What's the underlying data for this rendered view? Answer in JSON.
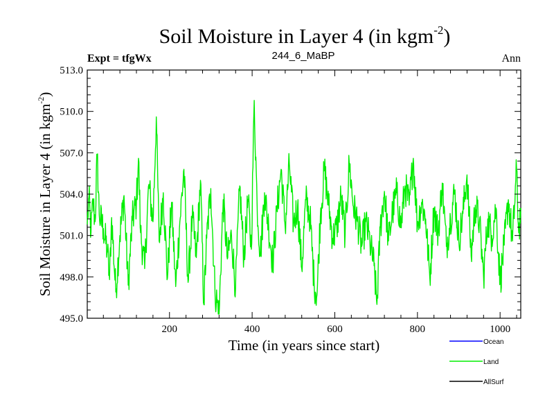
{
  "chart_data": {
    "type": "line",
    "title": "Soil Moisture in Layer 4 (in kgm",
    "title_sup": "-2",
    "title_close": ")",
    "subtitle_left": "Expt = tfgWx",
    "subtitle_center": "244_6_MaBP",
    "subtitle_right": "Ann",
    "xlabel": "Time (in years since start)",
    "ylabel": "Soil Moisture in Layer 4 (in kgm",
    "ylabel_sup": "-2",
    "ylabel_close": ")",
    "xlim": [
      1,
      1050
    ],
    "ylim": [
      495.0,
      513.0
    ],
    "xticks": [
      200,
      400,
      600,
      800,
      1000
    ],
    "xtick_labels": [
      "200",
      "400",
      "600",
      "800",
      "1000"
    ],
    "yticks": [
      495.0,
      498.0,
      501.0,
      504.0,
      507.0,
      510.0,
      513.0
    ],
    "ytick_labels": [
      "495.0",
      "498.0",
      "501.0",
      "504.0",
      "507.0",
      "510.0",
      "513.0"
    ],
    "legend": [
      {
        "name": "Ocean",
        "color": "#0000ff"
      },
      {
        "name": "Land",
        "color": "#00ee00"
      },
      {
        "name": "AllSurf",
        "color": "#000000"
      }
    ],
    "series": [
      {
        "name": "Land",
        "color": "#00ee00",
        "keypoints": [
          [
            1,
            501.8
          ],
          [
            5,
            503.8
          ],
          [
            10,
            501.2
          ],
          [
            15,
            503.5
          ],
          [
            20,
            502.0
          ],
          [
            25,
            506.9
          ],
          [
            30,
            502.5
          ],
          [
            40,
            501.5
          ],
          [
            50,
            499.8
          ],
          [
            55,
            497.8
          ],
          [
            60,
            502.3
          ],
          [
            70,
            496.9
          ],
          [
            80,
            501.0
          ],
          [
            90,
            503.9
          ],
          [
            100,
            497.4
          ],
          [
            110,
            502.1
          ],
          [
            120,
            503.4
          ],
          [
            125,
            506.6
          ],
          [
            130,
            501.2
          ],
          [
            140,
            498.6
          ],
          [
            150,
            504.7
          ],
          [
            160,
            502.0
          ],
          [
            168,
            509.6
          ],
          [
            175,
            500.6
          ],
          [
            185,
            504.1
          ],
          [
            195,
            497.9
          ],
          [
            205,
            503.4
          ],
          [
            215,
            497.3
          ],
          [
            225,
            502.0
          ],
          [
            235,
            505.8
          ],
          [
            245,
            497.6
          ],
          [
            255,
            502.3
          ],
          [
            265,
            499.4
          ],
          [
            275,
            505.0
          ],
          [
            283,
            496.0
          ],
          [
            290,
            500.8
          ],
          [
            300,
            504.4
          ],
          [
            310,
            497.0
          ],
          [
            320,
            495.3
          ],
          [
            330,
            503.6
          ],
          [
            340,
            499.3
          ],
          [
            350,
            501.0
          ],
          [
            360,
            497.2
          ],
          [
            370,
            504.6
          ],
          [
            380,
            499.4
          ],
          [
            390,
            503.6
          ],
          [
            398,
            500.0
          ],
          [
            405,
            510.8
          ],
          [
            412,
            503.2
          ],
          [
            420,
            499.6
          ],
          [
            430,
            504.1
          ],
          [
            440,
            501.6
          ],
          [
            450,
            499.0
          ],
          [
            460,
            502.8
          ],
          [
            470,
            505.8
          ],
          [
            480,
            501.6
          ],
          [
            490,
            506.2
          ],
          [
            500,
            501.8
          ],
          [
            510,
            503.2
          ],
          [
            520,
            498.6
          ],
          [
            530,
            503.6
          ],
          [
            540,
            502.4
          ],
          [
            550,
            497.6
          ],
          [
            557,
            496.7
          ],
          [
            565,
            502.4
          ],
          [
            575,
            505.8
          ],
          [
            585,
            503.2
          ],
          [
            595,
            500.8
          ],
          [
            605,
            501.6
          ],
          [
            615,
            503.8
          ],
          [
            625,
            501.1
          ],
          [
            635,
            506.3
          ],
          [
            645,
            503.1
          ],
          [
            655,
            502.0
          ],
          [
            665,
            500.2
          ],
          [
            675,
            502.0
          ],
          [
            685,
            500.5
          ],
          [
            695,
            498.8
          ],
          [
            702,
            496.0
          ],
          [
            710,
            501.6
          ],
          [
            720,
            504.2
          ],
          [
            730,
            500.6
          ],
          [
            740,
            502.8
          ],
          [
            750,
            504.1
          ],
          [
            760,
            501.6
          ],
          [
            770,
            504.6
          ],
          [
            780,
            503.2
          ],
          [
            790,
            506.6
          ],
          [
            800,
            501.8
          ],
          [
            810,
            503.4
          ],
          [
            820,
            502.2
          ],
          [
            830,
            497.9
          ],
          [
            840,
            503.0
          ],
          [
            850,
            501.1
          ],
          [
            860,
            504.8
          ],
          [
            870,
            500.2
          ],
          [
            880,
            502.2
          ],
          [
            890,
            504.2
          ],
          [
            900,
            500.6
          ],
          [
            910,
            502.6
          ],
          [
            920,
            505.4
          ],
          [
            930,
            499.5
          ],
          [
            940,
            503.2
          ],
          [
            950,
            502.0
          ],
          [
            960,
            498.0
          ],
          [
            970,
            502.2
          ],
          [
            980,
            501.0
          ],
          [
            990,
            503.0
          ],
          [
            1000,
            497.6
          ],
          [
            1010,
            500.3
          ],
          [
            1020,
            503.6
          ],
          [
            1030,
            500.6
          ],
          [
            1040,
            505.8
          ],
          [
            1045,
            501.2
          ],
          [
            1050,
            503.0
          ]
        ]
      }
    ]
  }
}
